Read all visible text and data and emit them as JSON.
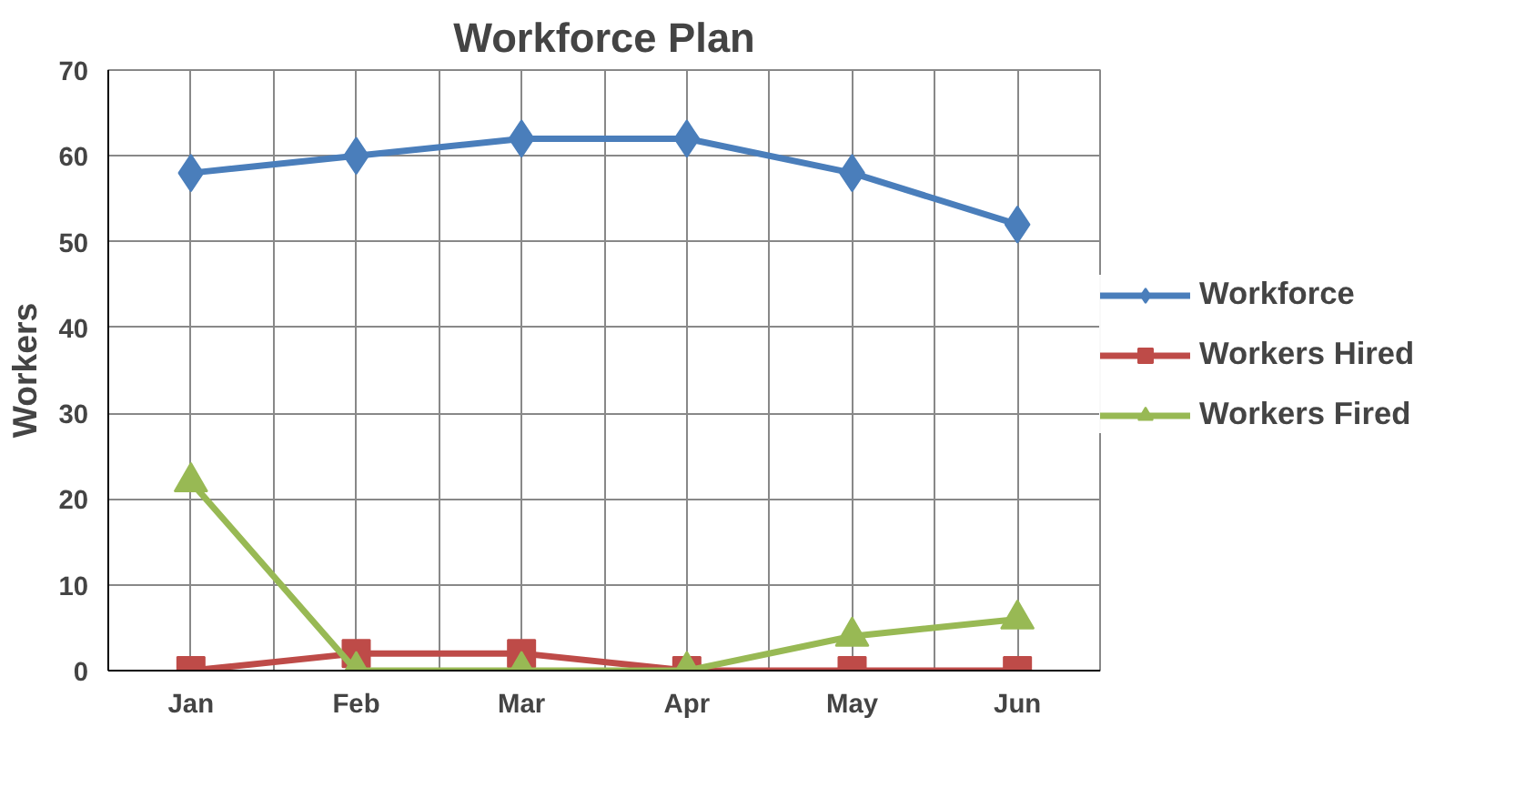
{
  "chart_data": {
    "type": "line",
    "title": "Workforce Plan",
    "ylabel": "Workers",
    "categories": [
      "Jan",
      "Feb",
      "Mar",
      "Apr",
      "May",
      "Jun"
    ],
    "series": [
      {
        "name": "Workforce",
        "color": "#4a7ebb",
        "values": [
          58,
          60,
          62,
          62,
          58,
          52
        ],
        "marker": "diamond"
      },
      {
        "name": "Workers Hired",
        "color": "#be4b48",
        "values": [
          0,
          2,
          2,
          0,
          0,
          0
        ],
        "marker": "square"
      },
      {
        "name": "Workers Fired",
        "color": "#98b954",
        "values": [
          22,
          0,
          0,
          0,
          4,
          6
        ],
        "marker": "triangle"
      }
    ],
    "ylim": [
      0,
      70
    ],
    "yticks": [
      0,
      10,
      20,
      30,
      40,
      50,
      60,
      70
    ],
    "grid": true,
    "legend": "right",
    "line_style": "solid"
  }
}
